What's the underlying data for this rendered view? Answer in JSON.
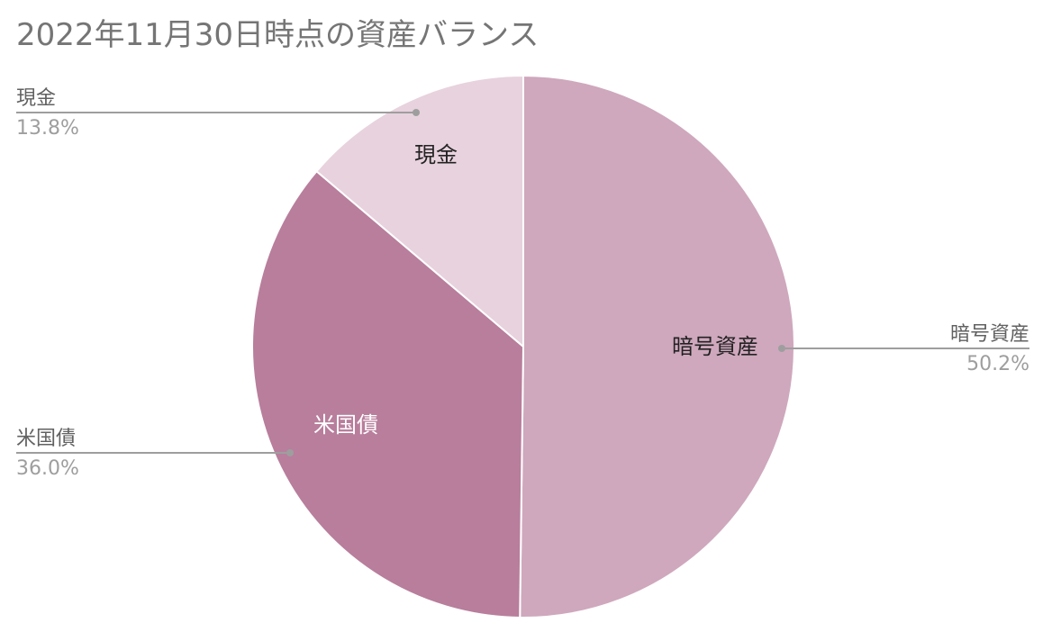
{
  "chart_data": {
    "type": "pie",
    "title": "2022年11月30日時点の資産バランス",
    "slices": [
      {
        "name": "暗号資産",
        "value": 50.2,
        "label": "50.2%",
        "color": "#cfa8bd",
        "inner_label_color": "#222222"
      },
      {
        "name": "米国債",
        "value": 36.0,
        "label": "36.0%",
        "color": "#b87e9c",
        "inner_label_color": "#ffffff"
      },
      {
        "name": "現金",
        "value": 13.8,
        "label": "13.8%",
        "color": "#e7d2dd",
        "inner_label_color": "#222222"
      }
    ],
    "legend": "leader-lines"
  }
}
